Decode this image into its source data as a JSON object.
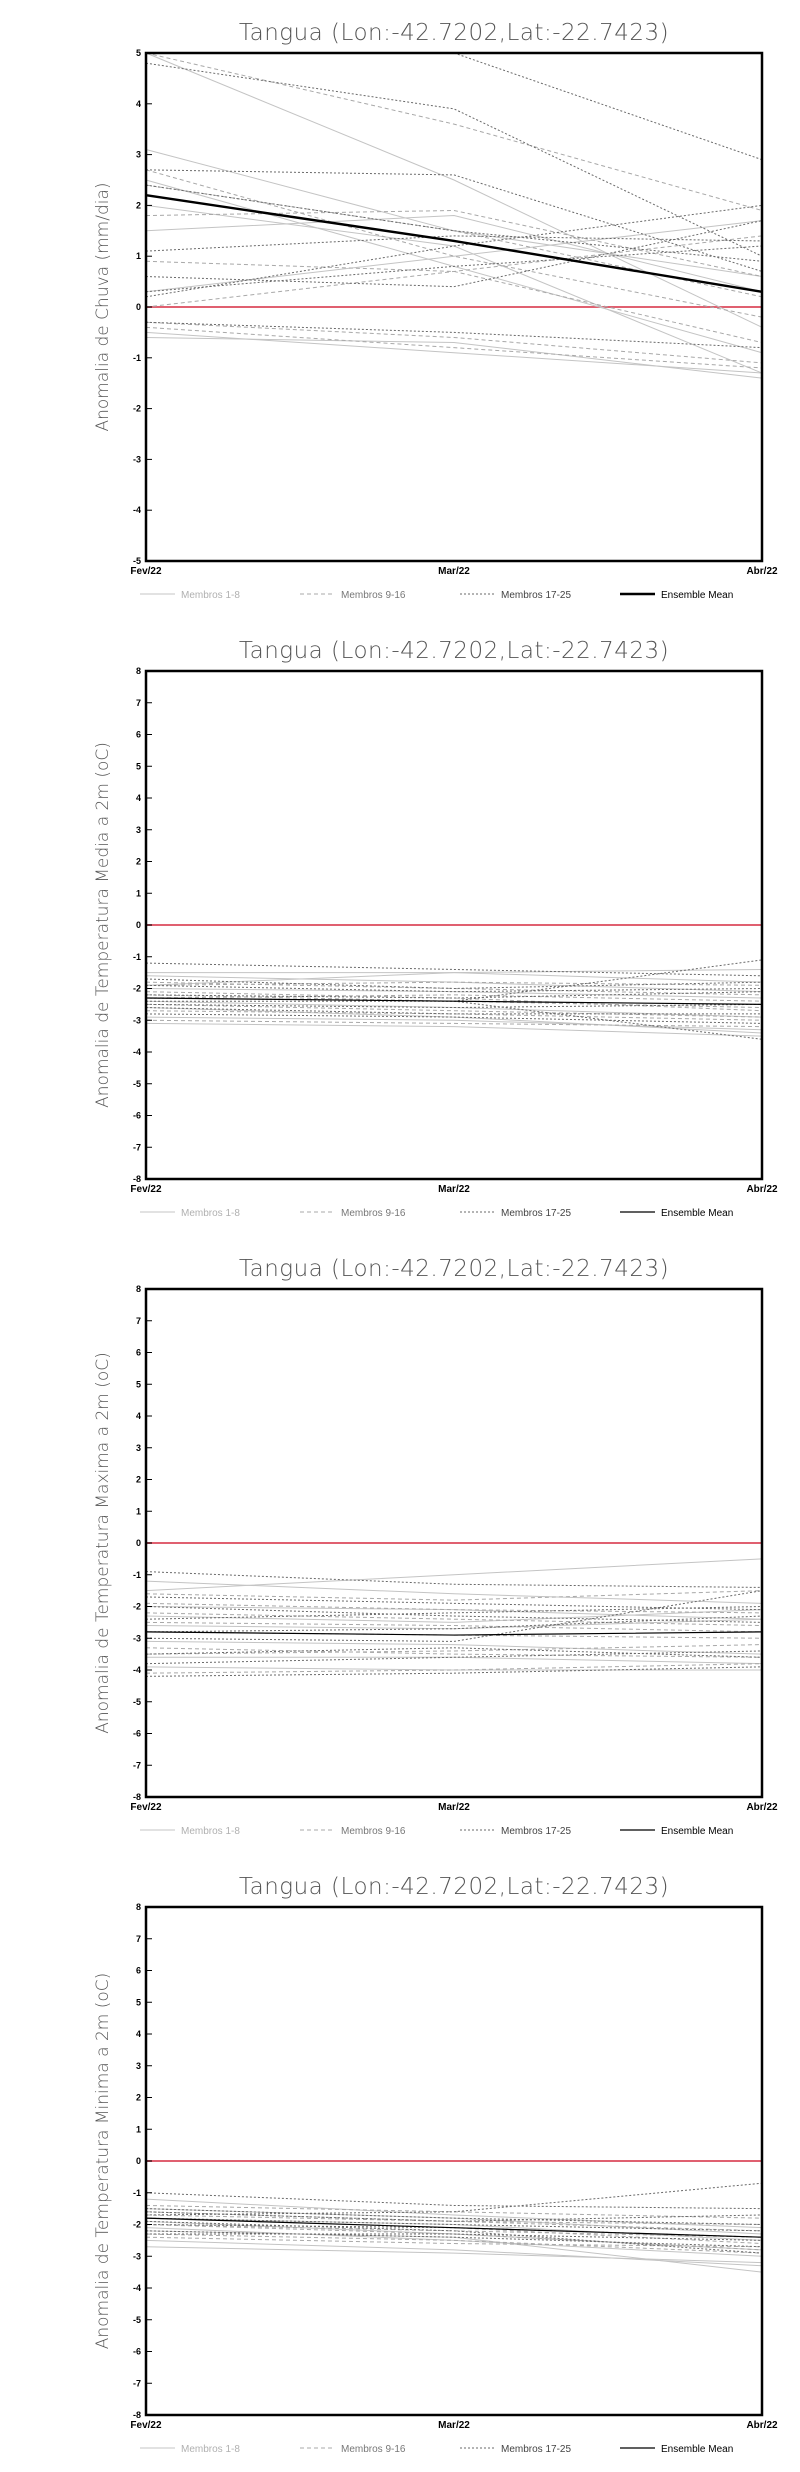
{
  "chart_data": [
    {
      "type": "line",
      "title": "Tangua (Lon:-42.7202,Lat:-22.7423)",
      "ylabel": "Anomalia de Chuva (mm/dia)",
      "x": [
        "Fev/22",
        "Mar/22",
        "Abr/22"
      ],
      "ylim": [
        -5,
        5
      ],
      "yticks": [
        -5,
        -4,
        -3,
        -2,
        -1,
        0,
        1,
        2,
        3,
        4,
        5
      ],
      "zero_line_color": "#e06070",
      "legend": [
        "Membros 1-8",
        "Membros 9-16",
        "Membros 17-25",
        "Ensemble Mean"
      ],
      "legend_placement": "bottom",
      "groups": [
        {
          "name": "Membros 1-8",
          "color": "#c4c4c4",
          "dash": "none",
          "series": [
            [
              3.1,
              1.5,
              0.6
            ],
            [
              2.0,
              1.2,
              -1.3
            ],
            [
              1.5,
              1.8,
              0.3
            ],
            [
              -0.5,
              -0.9,
              -1.3
            ],
            [
              0.3,
              1.0,
              1.7
            ],
            [
              2.5,
              0.8,
              -0.9
            ],
            [
              -0.6,
              -0.7,
              -1.4
            ],
            [
              5.0,
              2.5,
              -0.4
            ]
          ]
        },
        {
          "name": "Membros 9-16",
          "color": "#a8a8a8",
          "dash": "4,3",
          "series": [
            [
              5.0,
              3.6,
              1.9
            ],
            [
              0.9,
              0.7,
              -0.7
            ],
            [
              2.4,
              1.5,
              0.2
            ],
            [
              -0.3,
              -0.6,
              -1.1
            ],
            [
              1.8,
              1.9,
              0.6
            ],
            [
              0.0,
              0.7,
              1.4
            ],
            [
              -0.4,
              -0.8,
              -1.2
            ],
            [
              2.7,
              1.0,
              -0.2
            ]
          ]
        },
        {
          "name": "Membros 17-25",
          "color": "#6a6a6a",
          "dash": "2,2",
          "series": [
            [
              5.0,
              5.0,
              2.9
            ],
            [
              2.7,
              2.6,
              0.7
            ],
            [
              4.8,
              3.9,
              1.0
            ],
            [
              0.6,
              0.4,
              1.7
            ],
            [
              0.2,
              1.2,
              2.0
            ],
            [
              -0.3,
              -0.5,
              -0.8
            ],
            [
              1.1,
              1.4,
              1.3
            ],
            [
              2.4,
              1.5,
              0.9
            ],
            [
              0.3,
              0.8,
              1.2
            ]
          ]
        },
        {
          "name": "Ensemble Mean",
          "color": "#000000",
          "dash": "none",
          "width": 2.4,
          "series": [
            [
              2.2,
              1.3,
              0.3
            ]
          ]
        }
      ]
    },
    {
      "type": "line",
      "title": "Tangua (Lon:-42.7202,Lat:-22.7423)",
      "ylabel": "Anomalia de Temperatura Media a 2m (oC)",
      "x": [
        "Fev/22",
        "Mar/22",
        "Abr/22"
      ],
      "ylim": [
        -8,
        8
      ],
      "yticks": [
        -8,
        -7,
        -6,
        -5,
        -4,
        -3,
        -2,
        -1,
        0,
        1,
        2,
        3,
        4,
        5,
        6,
        7,
        8
      ],
      "zero_line_color": "#e06070",
      "legend": [
        "Membros 1-8",
        "Membros 9-16",
        "Membros 17-25",
        "Ensemble Mean"
      ],
      "legend_placement": "bottom",
      "groups": [
        {
          "name": "Membros 1-8",
          "color": "#c4c4c4",
          "dash": "none",
          "series": [
            [
              -1.5,
              -1.5,
              -1.8
            ],
            [
              -2.6,
              -2.9,
              -3.4
            ],
            [
              -2.9,
              -3.0,
              -3.3
            ],
            [
              -2.0,
              -2.1,
              -2.3
            ],
            [
              -1.6,
              -1.8,
              -2.1
            ],
            [
              -3.1,
              -3.2,
              -3.5
            ],
            [
              -2.4,
              -2.6,
              -2.9
            ],
            [
              -1.9,
              -1.5,
              -1.4
            ]
          ]
        },
        {
          "name": "Membros 9-16",
          "color": "#a8a8a8",
          "dash": "4,3",
          "series": [
            [
              -2.2,
              -2.4,
              -2.6
            ],
            [
              -1.8,
              -2.0,
              -2.2
            ],
            [
              -2.7,
              -2.8,
              -3.0
            ],
            [
              -3.0,
              -3.1,
              -3.2
            ],
            [
              -1.9,
              -1.8,
              -1.9
            ],
            [
              -2.5,
              -2.7,
              -2.9
            ],
            [
              -2.3,
              -2.2,
              -2.4
            ],
            [
              -2.1,
              -2.3,
              -2.7
            ]
          ]
        },
        {
          "name": "Membros 17-25",
          "color": "#6a6a6a",
          "dash": "2,2",
          "series": [
            [
              -1.2,
              -1.4,
              -1.6
            ],
            [
              -2.4,
              -2.4,
              -1.1
            ],
            [
              -2.3,
              -2.4,
              -3.6
            ],
            [
              -1.9,
              -2.1,
              -2.0
            ],
            [
              -2.6,
              -2.8,
              -2.8
            ],
            [
              -2.8,
              -2.9,
              -3.1
            ],
            [
              -2.2,
              -2.3,
              -2.1
            ],
            [
              -1.7,
              -2.0,
              -1.8
            ],
            [
              -2.5,
              -2.6,
              -2.5
            ]
          ]
        },
        {
          "name": "Ensemble Mean",
          "color": "#000000",
          "dash": "none",
          "width": 1.2,
          "series": [
            [
              -2.3,
              -2.4,
              -2.5
            ]
          ]
        }
      ]
    },
    {
      "type": "line",
      "title": "Tangua (Lon:-42.7202,Lat:-22.7423)",
      "ylabel": "Anomalia de Temperatura Maxima a 2m (oC)",
      "x": [
        "Fev/22",
        "Mar/22",
        "Abr/22"
      ],
      "ylim": [
        -8,
        8
      ],
      "yticks": [
        -8,
        -7,
        -6,
        -5,
        -4,
        -3,
        -2,
        -1,
        0,
        1,
        2,
        3,
        4,
        5,
        6,
        7,
        8
      ],
      "zero_line_color": "#e06070",
      "legend": [
        "Membros 1-8",
        "Membros 9-16",
        "Membros 17-25",
        "Ensemble Mean"
      ],
      "legend_placement": "bottom",
      "groups": [
        {
          "name": "Membros 1-8",
          "color": "#c4c4c4",
          "dash": "none",
          "series": [
            [
              -1.5,
              -1.0,
              -0.5
            ],
            [
              -3.6,
              -3.6,
              -3.8
            ],
            [
              -2.0,
              -2.1,
              -2.4
            ],
            [
              -2.6,
              -2.7,
              -2.4
            ],
            [
              -3.9,
              -4.0,
              -4.0
            ],
            [
              -1.2,
              -1.6,
              -1.9
            ],
            [
              -3.1,
              -3.2,
              -3.5
            ],
            [
              -2.3,
              -2.5,
              -2.1
            ]
          ]
        },
        {
          "name": "Membros 9-16",
          "color": "#a8a8a8",
          "dash": "4,3",
          "series": [
            [
              -1.9,
              -2.1,
              -2.2
            ],
            [
              -3.3,
              -3.5,
              -3.6
            ],
            [
              -2.8,
              -2.9,
              -3.0
            ],
            [
              -4.1,
              -4.0,
              -3.8
            ],
            [
              -2.5,
              -2.6,
              -2.8
            ],
            [
              -1.6,
              -1.8,
              -1.5
            ],
            [
              -3.5,
              -3.4,
              -3.2
            ],
            [
              -2.2,
              -2.4,
              -2.6
            ]
          ]
        },
        {
          "name": "Membros 17-25",
          "color": "#6a6a6a",
          "dash": "2,2",
          "series": [
            [
              -0.9,
              -1.3,
              -1.4
            ],
            [
              -3.0,
              -3.1,
              -1.5
            ],
            [
              -2.0,
              -2.3,
              -2.5
            ],
            [
              -3.5,
              -3.3,
              -3.6
            ],
            [
              -4.2,
              -4.1,
              -3.9
            ],
            [
              -1.7,
              -1.9,
              -2.1
            ],
            [
              -2.8,
              -2.7,
              -2.3
            ],
            [
              -3.8,
              -3.6,
              -3.4
            ],
            [
              -2.4,
              -2.2,
              -2.0
            ]
          ]
        },
        {
          "name": "Ensemble Mean",
          "color": "#000000",
          "dash": "none",
          "width": 1.2,
          "series": [
            [
              -2.8,
              -2.9,
              -2.8
            ]
          ]
        }
      ]
    },
    {
      "type": "line",
      "title": "Tangua (Lon:-42.7202,Lat:-22.7423)",
      "ylabel": "Anomalia de Temperatura Minima a 2m (oC)",
      "x": [
        "Fev/22",
        "Mar/22",
        "Abr/22"
      ],
      "ylim": [
        -8,
        8
      ],
      "yticks": [
        -8,
        -7,
        -6,
        -5,
        -4,
        -3,
        -2,
        -1,
        0,
        1,
        2,
        3,
        4,
        5,
        6,
        7,
        8
      ],
      "zero_line_color": "#e06070",
      "legend": [
        "Membros 1-8",
        "Membros 9-16",
        "Membros 17-25",
        "Ensemble Mean"
      ],
      "legend_placement": "bottom",
      "groups": [
        {
          "name": "Membros 1-8",
          "color": "#c4c4c4",
          "dash": "none",
          "series": [
            [
              -1.2,
              -1.7,
              -2.1
            ],
            [
              -2.5,
              -2.8,
              -3.3
            ],
            [
              -1.9,
              -2.3,
              -2.8
            ],
            [
              -2.2,
              -2.4,
              -3.5
            ],
            [
              -1.5,
              -1.8,
              -2.3
            ],
            [
              -2.7,
              -2.9,
              -3.2
            ],
            [
              -1.8,
              -2.0,
              -2.5
            ],
            [
              -2.1,
              -2.5,
              -3.0
            ]
          ]
        },
        {
          "name": "Membros 9-16",
          "color": "#a8a8a8",
          "dash": "4,3",
          "series": [
            [
              -1.6,
              -1.9,
              -2.0
            ],
            [
              -2.0,
              -2.2,
              -2.4
            ],
            [
              -2.3,
              -2.5,
              -2.9
            ],
            [
              -1.4,
              -1.6,
              -1.8
            ],
            [
              -1.8,
              -2.1,
              -2.6
            ],
            [
              -2.4,
              -2.6,
              -2.7
            ],
            [
              -1.7,
              -1.9,
              -2.2
            ],
            [
              -2.0,
              -2.3,
              -2.8
            ]
          ]
        },
        {
          "name": "Membros 17-25",
          "color": "#6a6a6a",
          "dash": "2,2",
          "series": [
            [
              -1.0,
              -1.4,
              -1.5
            ],
            [
              -1.7,
              -1.6,
              -0.7
            ],
            [
              -1.8,
              -2.0,
              -2.2
            ],
            [
              -2.2,
              -2.4,
              -2.7
            ],
            [
              -1.5,
              -1.8,
              -2.0
            ],
            [
              -2.0,
              -2.1,
              -2.4
            ],
            [
              -1.9,
              -2.2,
              -2.9
            ],
            [
              -1.6,
              -1.9,
              -1.7
            ],
            [
              -2.3,
              -2.3,
              -2.5
            ]
          ]
        },
        {
          "name": "Ensemble Mean",
          "color": "#000000",
          "dash": "none",
          "width": 1.2,
          "series": [
            [
              -1.8,
              -2.1,
              -2.4
            ]
          ]
        }
      ]
    }
  ]
}
